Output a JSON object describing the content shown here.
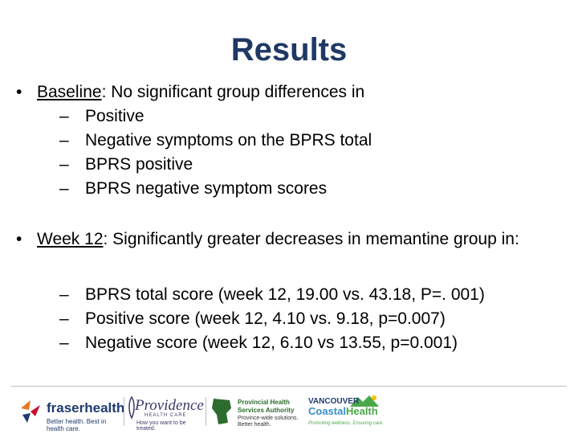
{
  "slide": {
    "title": "Results",
    "bullet1": {
      "marker": "•",
      "lead": "Baseline",
      "rest": ": No significant group differences in",
      "items": [
        "Positive",
        "Negative symptoms on the BPRS total",
        "BPRS positive",
        "BPRS negative symptom scores"
      ]
    },
    "bullet2": {
      "marker": "•",
      "lead": "Week 12",
      "rest": ": Significantly greater decreases in memantine group in:",
      "items": [
        "BPRS total score (week 12, 19.00 vs. 43.18, P=. 001)",
        "Positive score (week 12, 4.10 vs. 9.18, p=0.007)",
        "Negative score (week 12, 6.10 vs 13.55, p=0.001)"
      ]
    },
    "dash": "–"
  },
  "footer": {
    "fraser": {
      "name": "fraserhealth",
      "tag": "Better health. Best in health care."
    },
    "providence": {
      "name": "Providence",
      "sub": "HEALTH CARE",
      "tag": "How you want to be treated."
    },
    "phsa": {
      "line1": "Provincial Health",
      "line2": "Services Authority",
      "line3": "Province-wide solutions.",
      "line4": "Better health."
    },
    "vch": {
      "line1": "VANCOUVER",
      "line2a": "Coastal",
      "line2b": "Health",
      "tag": "Promoting wellness. Ensuring care."
    }
  }
}
